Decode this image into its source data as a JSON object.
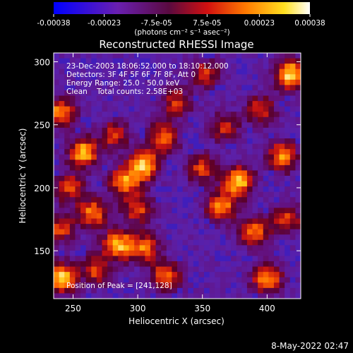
{
  "chart_data": {
    "type": "heatmap",
    "title": "Reconstructed RHESSI Image",
    "xlabel": "Heliocentric X (arcsec)",
    "ylabel": "Heliocentric Y (arcsec)",
    "xlim": [
      235,
      426
    ],
    "ylim": [
      112,
      307
    ],
    "x_ticks": [
      250,
      300,
      350,
      400
    ],
    "y_ticks": [
      150,
      200,
      250,
      300
    ],
    "colorbar": {
      "ticks": [
        "-0.00038",
        "-0.00023",
        "-7.5e-05",
        "7.5e-05",
        "0.00023",
        "0.00038"
      ],
      "tick_values": [
        -0.00038,
        -0.00023,
        -7.5e-05,
        7.5e-05,
        0.00023,
        0.00038
      ],
      "range": [
        -0.00038,
        0.00038
      ],
      "unit": "(photons cm⁻² s⁻¹ asec⁻²)",
      "colormap": "blue-purple-red-orange-yellow-white"
    },
    "annotations": [
      "23-Dec-2003 18:06:52.000 to 18:10:12.000",
      "Detectors: 3F 4F 5F 6F 7F 8F, Att 0",
      "Energy Range: 25.0 - 50.0 keV",
      "Clean    Total counts: 2.58E+03"
    ],
    "peak_label": "Position of Peak = [241,128]",
    "peak": [
      241,
      128
    ],
    "hotspots": [
      {
        "x": 258,
        "y": 228,
        "v": 0.9
      },
      {
        "x": 240,
        "y": 260,
        "v": 0.8
      },
      {
        "x": 282,
        "y": 242,
        "v": 0.55
      },
      {
        "x": 305,
        "y": 218,
        "v": 0.95
      },
      {
        "x": 320,
        "y": 240,
        "v": 0.7
      },
      {
        "x": 290,
        "y": 205,
        "v": 0.8
      },
      {
        "x": 247,
        "y": 200,
        "v": 0.6
      },
      {
        "x": 265,
        "y": 180,
        "v": 0.75
      },
      {
        "x": 300,
        "y": 183,
        "v": 0.6
      },
      {
        "x": 285,
        "y": 155,
        "v": 0.9
      },
      {
        "x": 305,
        "y": 152,
        "v": 0.7
      },
      {
        "x": 268,
        "y": 135,
        "v": 0.6
      },
      {
        "x": 241,
        "y": 128,
        "v": 1.0
      },
      {
        "x": 322,
        "y": 130,
        "v": 0.7
      },
      {
        "x": 378,
        "y": 205,
        "v": 0.95
      },
      {
        "x": 365,
        "y": 185,
        "v": 0.8
      },
      {
        "x": 350,
        "y": 215,
        "v": 0.6
      },
      {
        "x": 390,
        "y": 165,
        "v": 0.7
      },
      {
        "x": 418,
        "y": 290,
        "v": 1.0
      },
      {
        "x": 412,
        "y": 225,
        "v": 0.8
      },
      {
        "x": 352,
        "y": 290,
        "v": 0.55
      },
      {
        "x": 395,
        "y": 262,
        "v": 0.55
      },
      {
        "x": 400,
        "y": 128,
        "v": 0.8
      },
      {
        "x": 415,
        "y": 175,
        "v": 0.6
      },
      {
        "x": 240,
        "y": 168,
        "v": 0.6
      },
      {
        "x": 330,
        "y": 268,
        "v": 0.55
      },
      {
        "x": 367,
        "y": 248,
        "v": 0.5
      }
    ]
  },
  "footer": {
    "timestamp": "8-May-2022 02:47"
  }
}
